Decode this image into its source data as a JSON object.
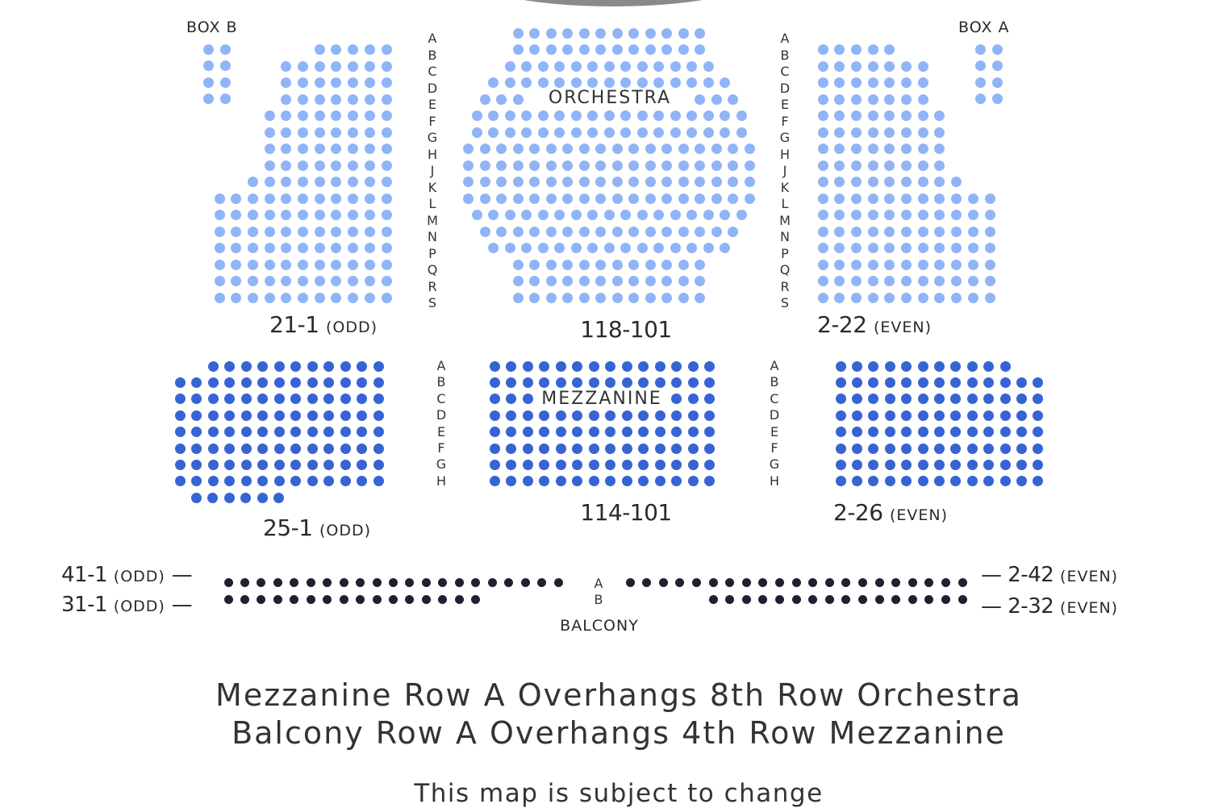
{
  "colors": {
    "orchestra": "#8fb5f8",
    "mezzanine": "#3565d3",
    "balcony": "#1d2230",
    "stage": "#8a8a8a"
  },
  "labels": {
    "box_b": "BOX B",
    "box_a": "BOX A",
    "orchestra": "ORCHESTRA",
    "mezzanine": "MEZZANINE",
    "balcony": "BALCONY"
  },
  "orchestra": {
    "row_letters": [
      "A",
      "B",
      "C",
      "D",
      "E",
      "F",
      "G",
      "H",
      "J",
      "K",
      "L",
      "M",
      "N",
      "P",
      "Q",
      "R",
      "S"
    ],
    "left_rows": [
      {
        "row": "B",
        "seats": 5
      },
      {
        "row": "C",
        "seats": 7
      },
      {
        "row": "D",
        "seats": 7
      },
      {
        "row": "E",
        "seats": 7
      },
      {
        "row": "F",
        "seats": 8
      },
      {
        "row": "G",
        "seats": 8
      },
      {
        "row": "H",
        "seats": 8
      },
      {
        "row": "J",
        "seats": 8
      },
      {
        "row": "K",
        "seats": 9
      },
      {
        "row": "L",
        "seats": 11
      },
      {
        "row": "M",
        "seats": 11
      },
      {
        "row": "N",
        "seats": 11
      },
      {
        "row": "P",
        "seats": 11
      },
      {
        "row": "Q",
        "seats": 11
      },
      {
        "row": "R",
        "seats": 11
      },
      {
        "row": "S",
        "seats": 11
      }
    ],
    "center_rows": [
      {
        "row": "A",
        "seats": 12
      },
      {
        "row": "B",
        "seats": 12
      },
      {
        "row": "C",
        "seats": 13
      },
      {
        "row": "D",
        "seats": 15
      },
      {
        "row": "E",
        "seats": 6,
        "split_of": 16
      },
      {
        "row": "F",
        "seats": 17
      },
      {
        "row": "G",
        "seats": 17
      },
      {
        "row": "H",
        "seats": 18
      },
      {
        "row": "J",
        "seats": 18
      },
      {
        "row": "K",
        "seats": 18
      },
      {
        "row": "L",
        "seats": 18
      },
      {
        "row": "M",
        "seats": 17
      },
      {
        "row": "N",
        "seats": 16
      },
      {
        "row": "P",
        "seats": 15
      },
      {
        "row": "Q",
        "seats": 12
      },
      {
        "row": "R",
        "seats": 12
      },
      {
        "row": "S",
        "seats": 12
      }
    ],
    "right_rows": [
      {
        "row": "B",
        "seats": 5
      },
      {
        "row": "C",
        "seats": 7
      },
      {
        "row": "D",
        "seats": 7
      },
      {
        "row": "E",
        "seats": 7
      },
      {
        "row": "F",
        "seats": 8
      },
      {
        "row": "G",
        "seats": 8
      },
      {
        "row": "H",
        "seats": 8
      },
      {
        "row": "J",
        "seats": 8
      },
      {
        "row": "K",
        "seats": 9
      },
      {
        "row": "L",
        "seats": 11
      },
      {
        "row": "M",
        "seats": 11
      },
      {
        "row": "N",
        "seats": 11
      },
      {
        "row": "P",
        "seats": 11
      },
      {
        "row": "Q",
        "seats": 11
      },
      {
        "row": "R",
        "seats": 11
      },
      {
        "row": "S",
        "seats": 11
      }
    ],
    "box_b": {
      "rows": 4,
      "seats_per_row": 2
    },
    "box_a": {
      "rows": 4,
      "seats_per_row": 2
    },
    "left_range": "21-1",
    "left_parity": "(ODD)",
    "center_range": "118-101",
    "right_range": "2-22",
    "right_parity": "(EVEN)"
  },
  "mezzanine": {
    "row_letters": [
      "A",
      "B",
      "C",
      "D",
      "E",
      "F",
      "G",
      "H"
    ],
    "left_rows": [
      {
        "row": "A",
        "seats": 11
      },
      {
        "row": "B",
        "seats": 13
      },
      {
        "row": "C",
        "seats": 13
      },
      {
        "row": "D",
        "seats": 13
      },
      {
        "row": "E",
        "seats": 13
      },
      {
        "row": "F",
        "seats": 13
      },
      {
        "row": "G",
        "seats": 13
      },
      {
        "row": "H",
        "seats": 13
      },
      {
        "row": "",
        "seats": 6
      }
    ],
    "center_rows": [
      {
        "row": "A",
        "seats": 14
      },
      {
        "row": "B",
        "seats": 14
      },
      {
        "row": "C",
        "seats": 6,
        "split_of": 14
      },
      {
        "row": "D",
        "seats": 14
      },
      {
        "row": "E",
        "seats": 14
      },
      {
        "row": "F",
        "seats": 14
      },
      {
        "row": "G",
        "seats": 14
      },
      {
        "row": "H",
        "seats": 14
      }
    ],
    "right_rows": [
      {
        "row": "A",
        "seats": 11
      },
      {
        "row": "B",
        "seats": 13
      },
      {
        "row": "C",
        "seats": 13
      },
      {
        "row": "D",
        "seats": 13
      },
      {
        "row": "E",
        "seats": 13
      },
      {
        "row": "F",
        "seats": 13
      },
      {
        "row": "G",
        "seats": 13
      },
      {
        "row": "H",
        "seats": 13
      }
    ],
    "left_range": "25-1",
    "left_parity": "(ODD)",
    "center_range": "114-101",
    "right_range": "2-26",
    "right_parity": "(EVEN)"
  },
  "balcony": {
    "row_letters": [
      "A",
      "B"
    ],
    "left_rows": [
      {
        "row": "A",
        "seats": 21
      },
      {
        "row": "B",
        "seats": 16
      }
    ],
    "right_rows": [
      {
        "row": "A",
        "seats": 21
      },
      {
        "row": "B",
        "seats": 16
      }
    ],
    "left_a_range": "41-1",
    "left_b_range": "31-1",
    "left_parity": "(ODD)",
    "right_a_range": "2-42",
    "right_b_range": "2-32",
    "right_parity": "(EVEN)",
    "dash": "—"
  },
  "notes": {
    "line1": "Mezzanine Row A Overhangs 8th Row Orchestra",
    "line2": "Balcony Row A Overhangs 4th Row Mezzanine",
    "line3": "This map is subject to change"
  }
}
